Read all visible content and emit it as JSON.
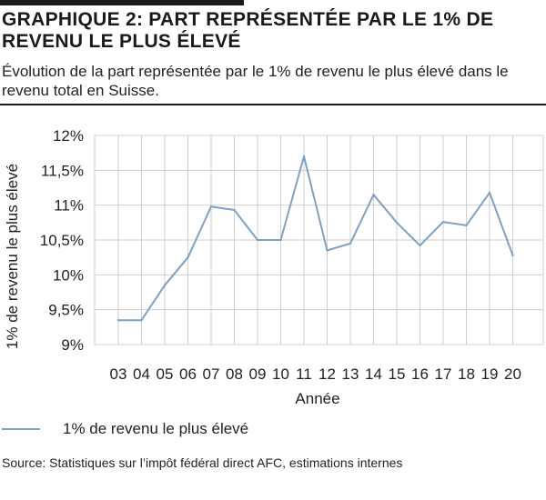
{
  "header": {
    "title_prefix": "GRAPHIQUE 2:",
    "title": "PART REPRÉSENTÉE PAR LE 1% DE REVENU LE PLUS ÉLEVÉ",
    "subtitle": "Évolution de la part représentée par le 1% de revenu le plus élevé dans le revenu total en Suisse."
  },
  "legend": {
    "label": "1% de revenu le plus élevé"
  },
  "source": "Source: Statistiques sur l’impôt fédéral direct AFC, estimations internes",
  "colors": {
    "line": "#7fa1c3",
    "grid": "#cfcfcf",
    "text": "#222222"
  },
  "chart_data": {
    "type": "line",
    "xlabel": "Année",
    "ylabel": "1% de revenu le plus élevé",
    "categories": [
      "03",
      "04",
      "05",
      "06",
      "07",
      "08",
      "09",
      "10",
      "11",
      "12",
      "13",
      "14",
      "15",
      "16",
      "17",
      "18",
      "19",
      "20"
    ],
    "y_ticks": [
      "9%",
      "9,5%",
      "10%",
      "10,5%",
      "11%",
      "11,5%",
      "12%"
    ],
    "ylim": [
      9,
      12
    ],
    "grid": true,
    "series": [
      {
        "name": "1% de revenu le plus élevé",
        "values": [
          9.35,
          9.35,
          9.85,
          10.25,
          10.98,
          10.93,
          10.5,
          10.5,
          11.7,
          10.35,
          10.45,
          11.15,
          10.75,
          10.42,
          10.76,
          10.71,
          11.18,
          10.28
        ]
      }
    ]
  }
}
